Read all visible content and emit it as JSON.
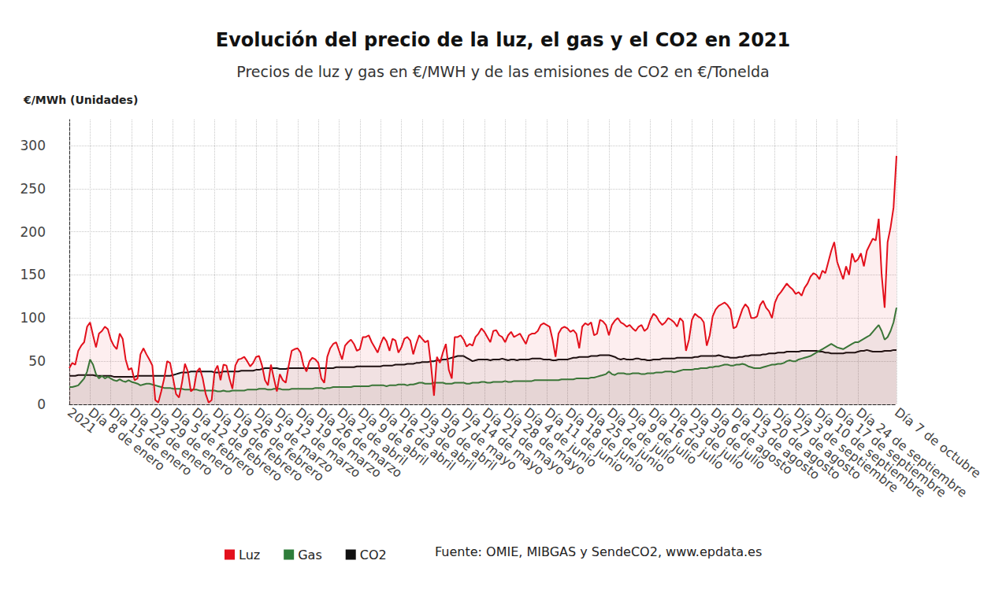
{
  "chart_data": {
    "type": "line",
    "title": "Evolución del precio de la luz, el gas y el CO2 en 2021",
    "subtitle": "Precios de luz y gas en €/MWH y de las emisiones de CO2 en €/Tonelda",
    "y_label": "€/MWh (Unidades)",
    "source": "Fuente: OMIE, MIBGAS y SendeCO2, www.epdata.es",
    "ylim": [
      0,
      330
    ],
    "yticks": [
      0,
      50,
      100,
      150,
      200,
      250,
      300
    ],
    "grid": true,
    "legend": "bottom",
    "categories": [
      "2021",
      null,
      null,
      null,
      null,
      null,
      null,
      "Día 8 de enero",
      null,
      null,
      null,
      null,
      null,
      null,
      "Día 15 de enero",
      null,
      null,
      null,
      null,
      null,
      null,
      "Día 22 de enero",
      null,
      null,
      null,
      null,
      null,
      null,
      "Día 29 de enero",
      null,
      null,
      null,
      null,
      null,
      null,
      "Día 5 de febrero",
      null,
      null,
      null,
      null,
      null,
      null,
      "Día 12 de febrero",
      null,
      null,
      null,
      null,
      null,
      null,
      "Día 19 de febrero",
      null,
      null,
      null,
      null,
      null,
      null,
      "Día 26 de febrero",
      null,
      null,
      null,
      null,
      null,
      null,
      "Día 5 de marzo",
      null,
      null,
      null,
      null,
      null,
      null,
      "Día 12 de marzo",
      null,
      null,
      null,
      null,
      null,
      null,
      "Día 19 de marzo",
      null,
      null,
      null,
      null,
      null,
      null,
      "Día 26 de marzo",
      null,
      null,
      null,
      null,
      null,
      null,
      "Día 2 de abril",
      null,
      null,
      null,
      null,
      null,
      null,
      "Día 9 de abril",
      null,
      null,
      null,
      null,
      null,
      null,
      "Día 16 de abril",
      null,
      null,
      null,
      null,
      null,
      null,
      "Día 23 de abril",
      null,
      null,
      null,
      null,
      null,
      null,
      "Día 30 de abril",
      null,
      null,
      null,
      null,
      null,
      null,
      "Día 7 de mayo",
      null,
      null,
      null,
      null,
      null,
      null,
      "Día 14 de mayo",
      null,
      null,
      null,
      null,
      null,
      null,
      "Día 21 de mayo",
      null,
      null,
      null,
      null,
      null,
      null,
      "Día 28 de mayo",
      null,
      null,
      null,
      null,
      null,
      null,
      "Día 4 de junio",
      null,
      null,
      null,
      null,
      null,
      null,
      "Día 11 de junio",
      null,
      null,
      null,
      null,
      null,
      null,
      "Día 18 de junio",
      null,
      null,
      null,
      null,
      null,
      null,
      "Día 25 de junio",
      null,
      null,
      null,
      null,
      null,
      null,
      "Día 2 de julio",
      null,
      null,
      null,
      null,
      null,
      null,
      "Día 9 de julio",
      null,
      null,
      null,
      null,
      null,
      null,
      "Día 16 de julio",
      null,
      null,
      null,
      null,
      null,
      null,
      "Día 23 de julio",
      null,
      null,
      null,
      null,
      null,
      null,
      "Día 30 de julio",
      null,
      null,
      null,
      null,
      null,
      null,
      "Día 6 de agosto",
      null,
      null,
      null,
      null,
      null,
      null,
      "Día 13 de agosto",
      null,
      null,
      null,
      null,
      null,
      null,
      "Día 20 de agosto",
      null,
      null,
      null,
      null,
      null,
      null,
      "Día 27 de agosto",
      null,
      null,
      null,
      null,
      null,
      null,
      "Día 3 de septiembre",
      null,
      null,
      null,
      null,
      null,
      null,
      "Día 10 de septiembre",
      null,
      null,
      null,
      null,
      null,
      null,
      "Día 17 de septiembre",
      null,
      null,
      null,
      null,
      null,
      null,
      "Día 24 de septiembre",
      null,
      null,
      null,
      null,
      null,
      null,
      null,
      null,
      null,
      null,
      null,
      null,
      "Día 7 de octubre"
    ],
    "series": [
      {
        "name": "Luz",
        "color": "#e3101c",
        "values": [
          42,
          48,
          46,
          62,
          68,
          72,
          90,
          95,
          80,
          66,
          82,
          85,
          90,
          87,
          75,
          68,
          64,
          82,
          76,
          52,
          40,
          42,
          28,
          30,
          58,
          65,
          58,
          52,
          45,
          5,
          2,
          15,
          30,
          50,
          48,
          30,
          12,
          8,
          25,
          47,
          38,
          15,
          18,
          38,
          42,
          30,
          12,
          2,
          5,
          38,
          45,
          28,
          46,
          45,
          30,
          18,
          45,
          52,
          53,
          55,
          50,
          44,
          48,
          55,
          56,
          45,
          28,
          22,
          46,
          30,
          15,
          35,
          28,
          25,
          45,
          62,
          64,
          65,
          60,
          45,
          38,
          50,
          54,
          52,
          48,
          30,
          25,
          55,
          65,
          70,
          72,
          62,
          52,
          68,
          72,
          75,
          70,
          62,
          64,
          78,
          78,
          80,
          72,
          66,
          60,
          70,
          78,
          73,
          62,
          76,
          74,
          60,
          66,
          76,
          78,
          74,
          58,
          70,
          80,
          76,
          72,
          74,
          45,
          10,
          55,
          48,
          60,
          70,
          40,
          30,
          78,
          78,
          80,
          75,
          67,
          70,
          68,
          78,
          82,
          88,
          84,
          78,
          72,
          85,
          86,
          80,
          78,
          72,
          80,
          84,
          78,
          80,
          82,
          76,
          70,
          80,
          82,
          82,
          85,
          92,
          94,
          92,
          90,
          75,
          55,
          82,
          88,
          90,
          88,
          84,
          86,
          82,
          65,
          90,
          94,
          92,
          95,
          80,
          82,
          98,
          96,
          92,
          80,
          92,
          97,
          100,
          95,
          93,
          90,
          92,
          88,
          85,
          90,
          92,
          85,
          88,
          98,
          105,
          102,
          96,
          92,
          95,
          100,
          98,
          95,
          90,
          100,
          96,
          62,
          75,
          98,
          105,
          102,
          100,
          95,
          68,
          80,
          102,
          110,
          114,
          116,
          118,
          115,
          110,
          88,
          90,
          100,
          110,
          116,
          112,
          100,
          100,
          102,
          115,
          120,
          112,
          108,
          100,
          118,
          126,
          130,
          135,
          140,
          136,
          133,
          128,
          130,
          126,
          135,
          140,
          148,
          152,
          150,
          145,
          155,
          152,
          165,
          178,
          188,
          165,
          155,
          145,
          160,
          150,
          175,
          165,
          168,
          175,
          160,
          178,
          185,
          192,
          190,
          215,
          150,
          112,
          188,
          205,
          228,
          288
        ]
      },
      {
        "name": "Gas",
        "color": "#2e7d3a",
        "values": [
          20,
          20,
          21,
          22,
          26,
          30,
          38,
          52,
          46,
          35,
          30,
          33,
          30,
          32,
          30,
          28,
          27,
          29,
          27,
          26,
          28,
          26,
          25,
          24,
          22,
          23,
          24,
          24,
          23,
          22,
          21,
          20,
          19,
          19,
          19,
          18,
          18,
          18,
          18,
          17,
          17,
          17,
          17,
          17,
          16,
          16,
          16,
          16,
          16,
          16,
          15,
          15,
          16,
          15,
          15,
          16,
          16,
          16,
          16,
          16,
          17,
          17,
          17,
          17,
          18,
          18,
          18,
          17,
          17,
          18,
          18,
          18,
          17,
          17,
          17,
          18,
          18,
          18,
          18,
          18,
          18,
          18,
          18,
          19,
          19,
          19,
          18,
          19,
          19,
          20,
          20,
          20,
          20,
          20,
          20,
          20,
          21,
          21,
          21,
          21,
          21,
          21,
          22,
          22,
          22,
          22,
          22,
          21,
          22,
          22,
          22,
          23,
          23,
          23,
          22,
          23,
          23,
          24,
          25,
          25,
          24,
          24,
          24,
          25,
          25,
          25,
          25,
          24,
          24,
          24,
          25,
          25,
          25,
          25,
          24,
          24,
          25,
          25,
          25,
          26,
          26,
          25,
          25,
          26,
          26,
          26,
          26,
          27,
          26,
          26,
          27,
          27,
          27,
          27,
          27,
          27,
          27,
          28,
          28,
          28,
          28,
          28,
          28,
          28,
          28,
          28,
          29,
          29,
          29,
          29,
          29,
          30,
          30,
          30,
          30,
          30,
          31,
          31,
          32,
          33,
          34,
          35,
          38,
          35,
          34,
          36,
          36,
          36,
          35,
          35,
          36,
          36,
          36,
          35,
          35,
          36,
          36,
          36,
          37,
          37,
          37,
          38,
          38,
          38,
          37,
          38,
          39,
          40,
          40,
          40,
          40,
          41,
          41,
          42,
          42,
          42,
          43,
          43,
          44,
          44,
          45,
          46,
          46,
          45,
          45,
          46,
          46,
          47,
          46,
          44,
          43,
          42,
          42,
          42,
          43,
          44,
          45,
          46,
          46,
          47,
          47,
          48,
          50,
          51,
          50,
          50,
          52,
          53,
          54,
          55,
          56,
          58,
          60,
          62,
          64,
          66,
          68,
          70,
          68,
          66,
          65,
          64,
          66,
          68,
          70,
          72,
          72,
          74,
          76,
          78,
          80,
          84,
          88,
          92,
          85,
          75,
          78,
          85,
          95,
          112
        ]
      },
      {
        "name": "CO2",
        "color": "#111111",
        "values": [
          33,
          33,
          33,
          34,
          34,
          34,
          34,
          34,
          34,
          33,
          33,
          33,
          33,
          33,
          33,
          32,
          32,
          32,
          32,
          32,
          32,
          32,
          32,
          33,
          33,
          33,
          33,
          33,
          33,
          33,
          33,
          33,
          33,
          33,
          33,
          34,
          35,
          36,
          37,
          37,
          37,
          38,
          38,
          38,
          38,
          38,
          38,
          38,
          38,
          37,
          37,
          37,
          38,
          38,
          38,
          38,
          38,
          38,
          39,
          39,
          39,
          39,
          39,
          40,
          40,
          41,
          42,
          42,
          42,
          42,
          42,
          41,
          41,
          41,
          42,
          42,
          42,
          42,
          42,
          42,
          42,
          42,
          42,
          42,
          42,
          42,
          42,
          42,
          42,
          42,
          43,
          43,
          43,
          43,
          43,
          43,
          43,
          44,
          44,
          44,
          44,
          44,
          44,
          44,
          44,
          44,
          45,
          45,
          45,
          45,
          46,
          46,
          46,
          46,
          47,
          47,
          47,
          48,
          48,
          49,
          49,
          49,
          50,
          50,
          51,
          51,
          52,
          52,
          53,
          54,
          55,
          56,
          56,
          56,
          54,
          52,
          50,
          51,
          52,
          52,
          52,
          52,
          51,
          52,
          52,
          52,
          53,
          52,
          51,
          52,
          52,
          51,
          52,
          52,
          52,
          52,
          53,
          53,
          53,
          53,
          52,
          52,
          52,
          51,
          51,
          52,
          52,
          52,
          52,
          53,
          54,
          54,
          55,
          55,
          55,
          55,
          56,
          56,
          56,
          57,
          57,
          57,
          57,
          56,
          55,
          53,
          52,
          53,
          52,
          52,
          52,
          53,
          53,
          52,
          52,
          51,
          51,
          52,
          52,
          52,
          53,
          53,
          53,
          53,
          53,
          54,
          54,
          54,
          54,
          54,
          54,
          55,
          55,
          56,
          56,
          56,
          56,
          56,
          56,
          57,
          56,
          55,
          55,
          54,
          54,
          54,
          55,
          55,
          56,
          56,
          57,
          57,
          57,
          57,
          58,
          58,
          59,
          59,
          59,
          60,
          60,
          60,
          61,
          61,
          61,
          61,
          61,
          62,
          62,
          62,
          62,
          62,
          62,
          61,
          61,
          60,
          60,
          59,
          59,
          59,
          59,
          59,
          60,
          60,
          60,
          60,
          61,
          62,
          62,
          63,
          62,
          61,
          61,
          61,
          61,
          62,
          62,
          62,
          63,
          63
        ]
      }
    ]
  }
}
